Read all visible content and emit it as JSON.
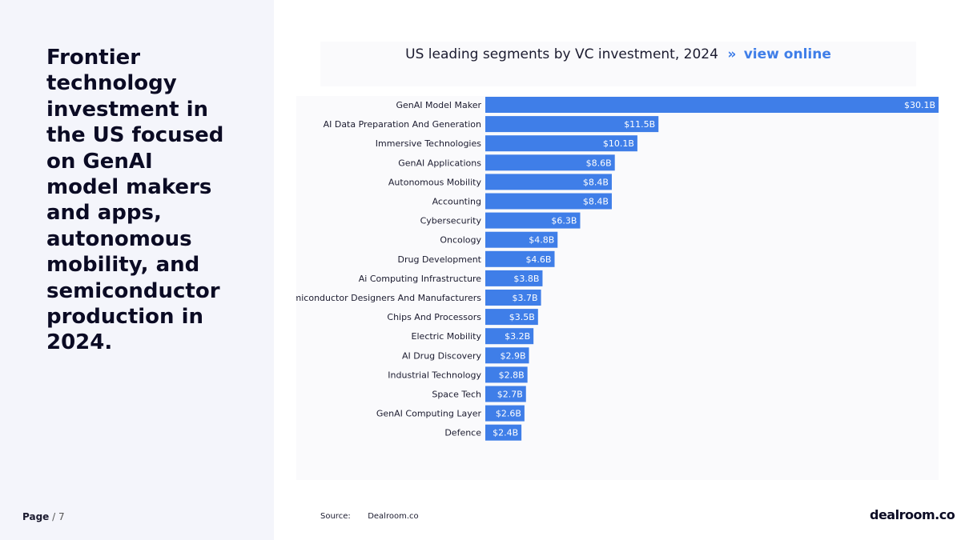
{
  "headline": "Frontier technology investment in the US focused on GenAI model makers and apps, autonomous mobility, and semiconductor production in 2024.",
  "page": {
    "label": "Page",
    "separator": "/",
    "number": "7"
  },
  "source": {
    "label": "Source:",
    "value": "Dealroom.co"
  },
  "logo": "dealroom.co",
  "title_link": {
    "arrows": "»",
    "text": "view online"
  },
  "colors": {
    "bar": "#3f7ee8",
    "accent": "#3f7ee8",
    "panel": "#f4f5fb"
  },
  "chart_data": {
    "type": "bar",
    "orientation": "horizontal",
    "title": "US leading segments by VC investment, 2024",
    "xlabel": "",
    "ylabel": "",
    "unit": "$B",
    "xlim": [
      0,
      30.1
    ],
    "grid": false,
    "categories": [
      "GenAI Model Maker",
      "AI Data Preparation And Generation",
      "Immersive Technologies",
      "GenAI Applications",
      "Autonomous Mobility",
      "Accounting",
      "Cybersecurity",
      "Oncology",
      "Drug Development",
      "Ai Computing Infrastructure",
      "Semiconductor Designers And Manufacturers",
      "Chips And Processors",
      "Electric Mobility",
      "AI Drug Discovery",
      "Industrial Technology",
      "Space Tech",
      "GenAI Computing Layer",
      "Defence"
    ],
    "values": [
      30.1,
      11.5,
      10.1,
      8.6,
      8.4,
      8.4,
      6.3,
      4.8,
      4.6,
      3.8,
      3.7,
      3.5,
      3.2,
      2.9,
      2.8,
      2.7,
      2.6,
      2.4
    ],
    "labels": [
      "$30.1B",
      "$11.5B",
      "$10.1B",
      "$8.6B",
      "$8.4B",
      "$8.4B",
      "$6.3B",
      "$4.8B",
      "$4.6B",
      "$3.8B",
      "$3.7B",
      "$3.5B",
      "$3.2B",
      "$2.9B",
      "$2.8B",
      "$2.7B",
      "$2.6B",
      "$2.4B"
    ]
  }
}
